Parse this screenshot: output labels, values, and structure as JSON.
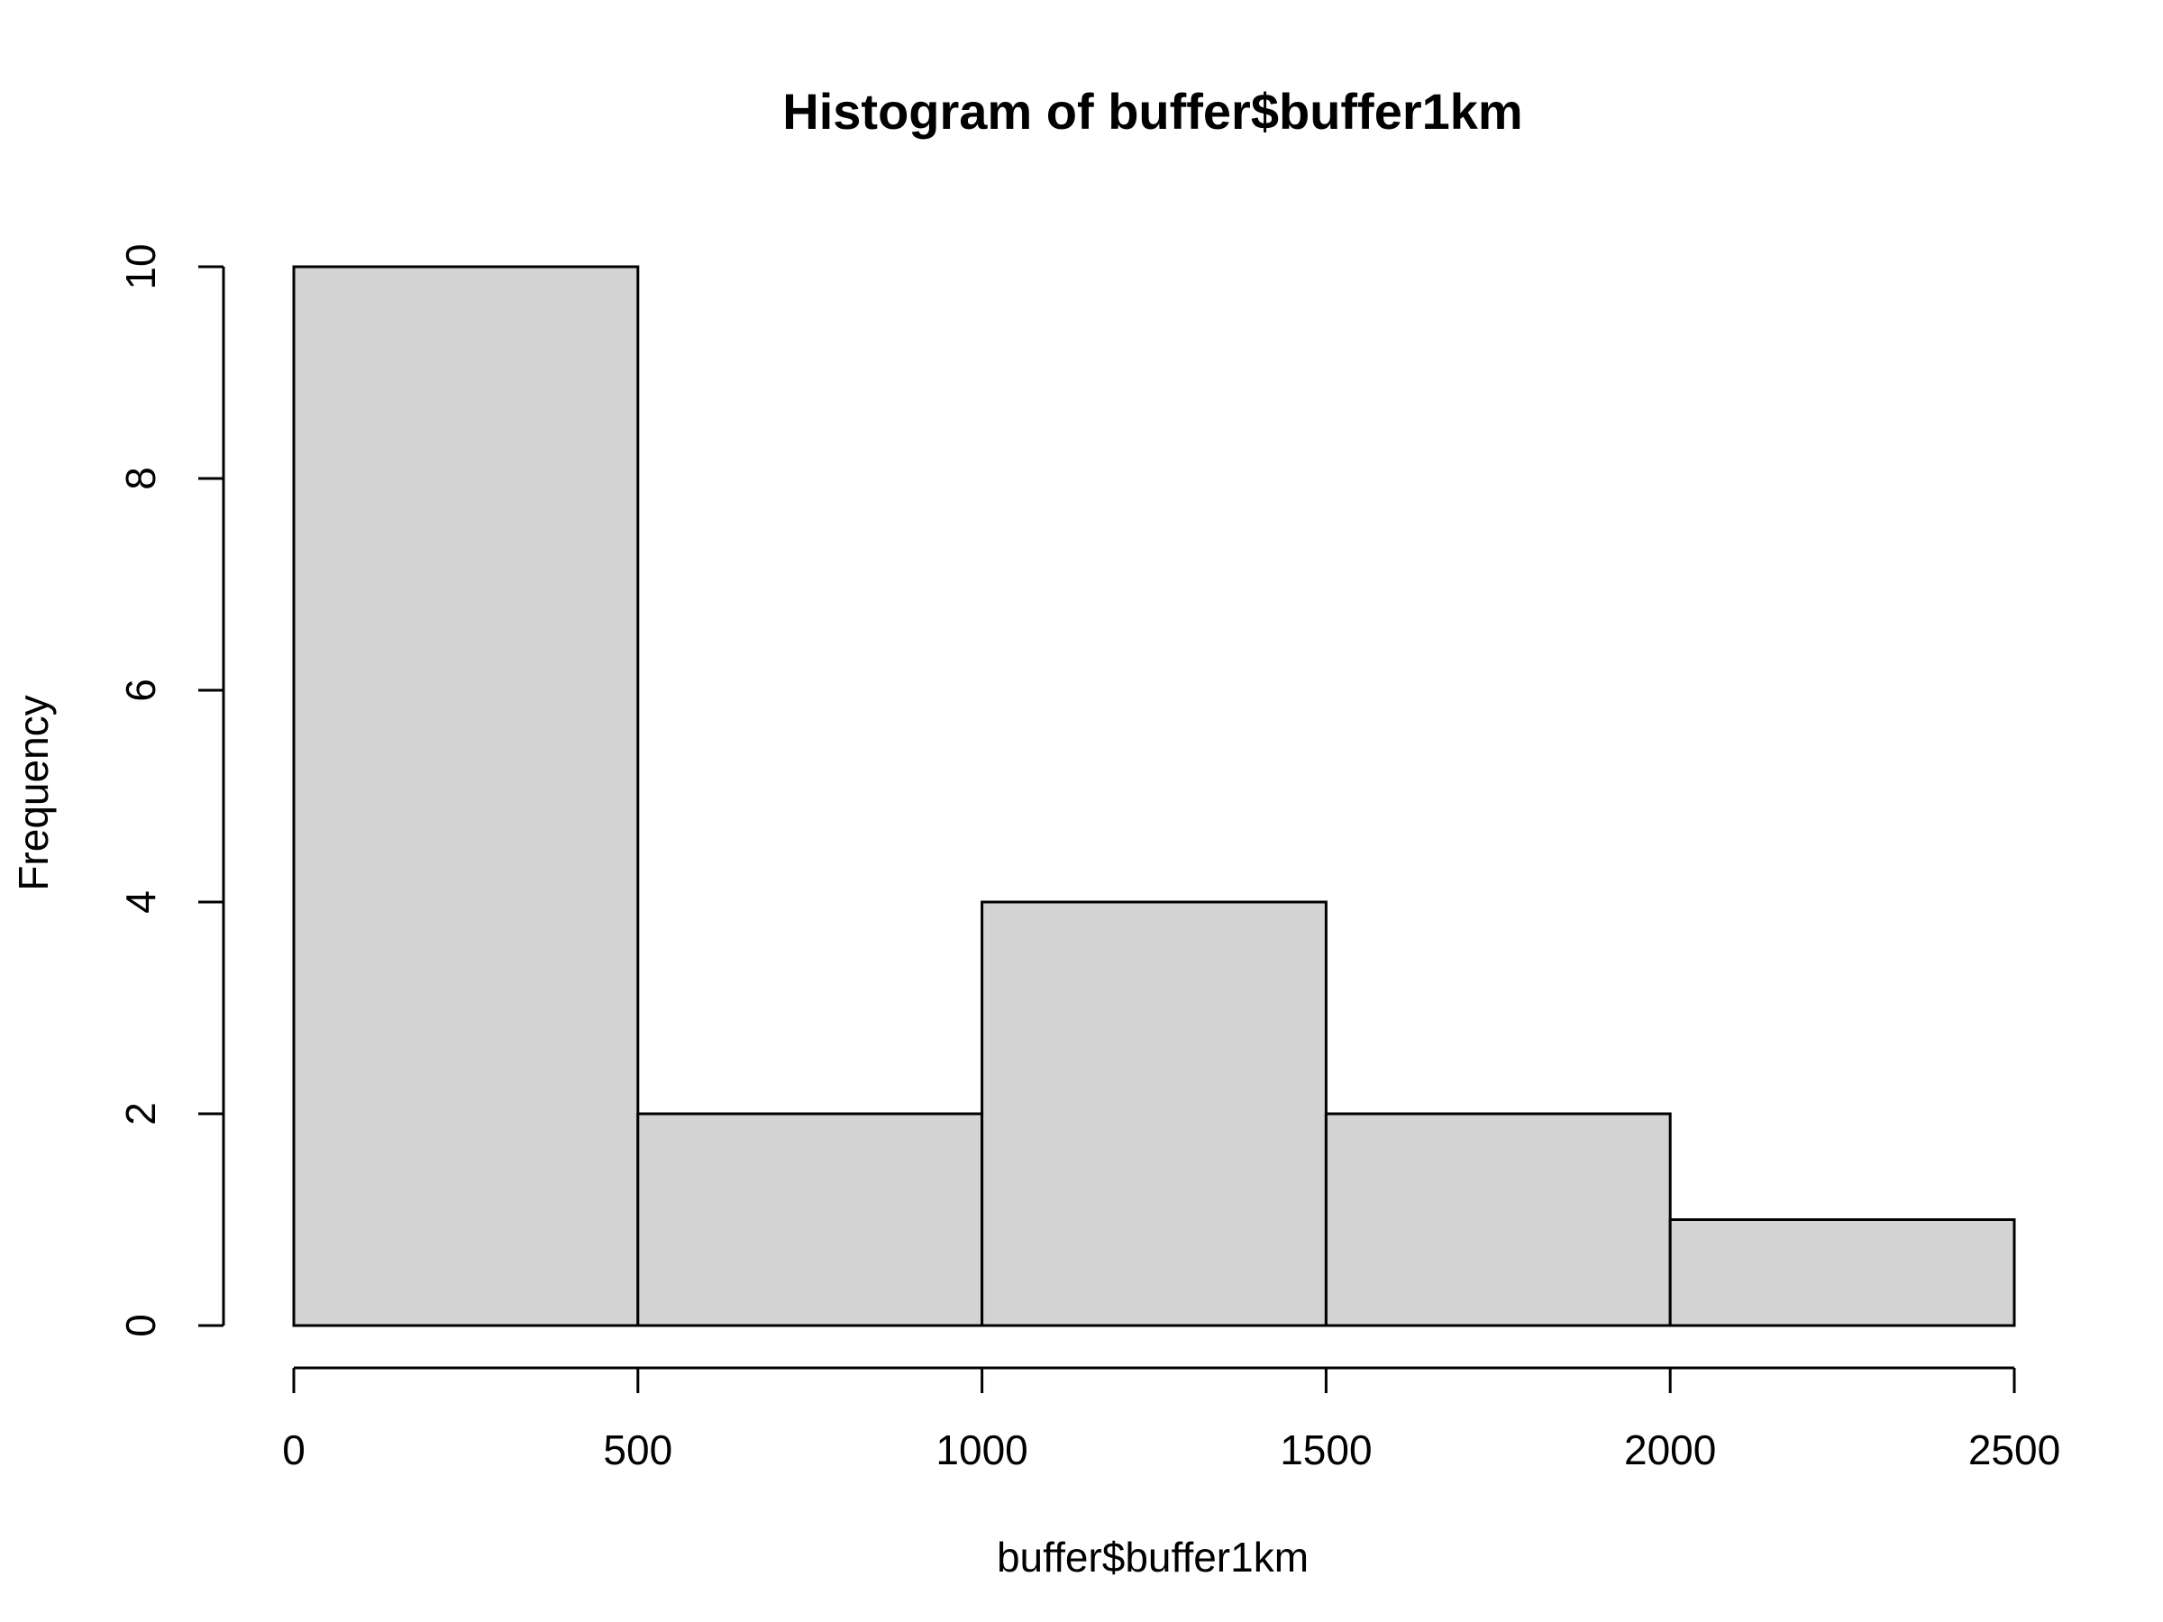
{
  "chart_data": {
    "type": "bar",
    "title": "Histogram of buffer$buffer1km",
    "xlabel": "buffer$buffer1km",
    "ylabel": "Frequency",
    "bins": [
      {
        "from": 0,
        "to": 500,
        "count": 10
      },
      {
        "from": 500,
        "to": 1000,
        "count": 2
      },
      {
        "from": 1000,
        "to": 1500,
        "count": 4
      },
      {
        "from": 1500,
        "to": 2000,
        "count": 2
      },
      {
        "from": 2000,
        "to": 2500,
        "count": 1
      }
    ],
    "xlim": [
      0,
      2500
    ],
    "ylim": [
      0,
      10
    ],
    "x_ticks": [
      0,
      500,
      1000,
      1500,
      2000,
      2500
    ],
    "y_ticks": [
      0,
      2,
      4,
      6,
      8,
      10
    ],
    "grid": false,
    "bar_color": "#d3d3d3",
    "edge_color": "#000000"
  }
}
